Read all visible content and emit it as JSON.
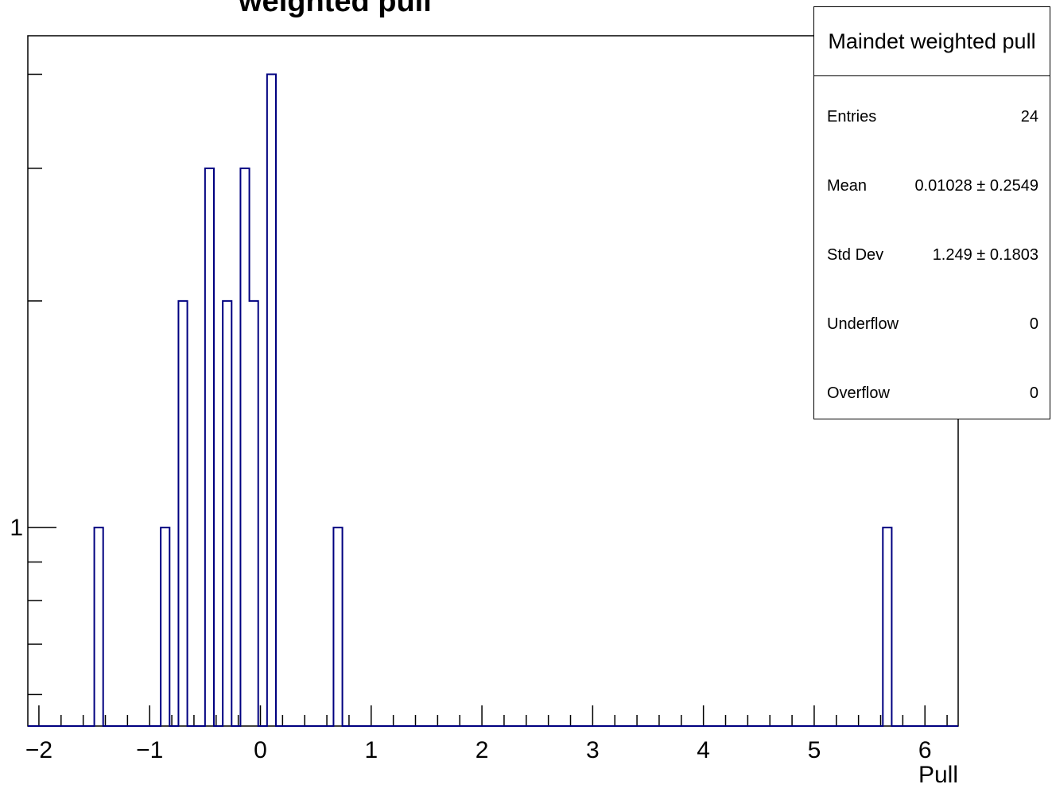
{
  "chart_data": {
    "type": "bar",
    "title": "weighted pull",
    "xlabel": "Pull",
    "ylabel": "",
    "xlim": [
      -2.1,
      6.3
    ],
    "ylim": [
      0.545,
      4.5
    ],
    "y_scale": "log",
    "bin_width": 0.08,
    "line_color": "#000080",
    "x_ticks": [
      -2,
      -1,
      0,
      1,
      2,
      3,
      4,
      5,
      6
    ],
    "x_tick_labels": [
      "−2",
      "−1",
      "0",
      "1",
      "2",
      "3",
      "4",
      "5",
      "6"
    ],
    "y_tick_labels": [
      "1"
    ],
    "bins": [
      {
        "low": -1.5,
        "count": 1
      },
      {
        "low": -0.9,
        "count": 1
      },
      {
        "low": -0.74,
        "count": 2
      },
      {
        "low": -0.5,
        "count": 3
      },
      {
        "low": -0.34,
        "count": 2
      },
      {
        "low": -0.18,
        "count": 3
      },
      {
        "low": -0.1,
        "count": 2
      },
      {
        "low": 0.06,
        "count": 4
      },
      {
        "low": 0.66,
        "count": 1
      },
      {
        "low": 5.62,
        "count": 1
      }
    ],
    "grid": false,
    "legend_position": "top-right"
  },
  "stats": {
    "title": "Maindet weighted pull",
    "rows": [
      {
        "label": "Entries",
        "value": "24"
      },
      {
        "label": "Mean",
        "value": "0.01028 ± 0.2549"
      },
      {
        "label": "Std Dev",
        "value": "1.249 ± 0.1803"
      },
      {
        "label": "Underflow",
        "value": "0"
      },
      {
        "label": "Overflow",
        "value": "0"
      }
    ]
  }
}
